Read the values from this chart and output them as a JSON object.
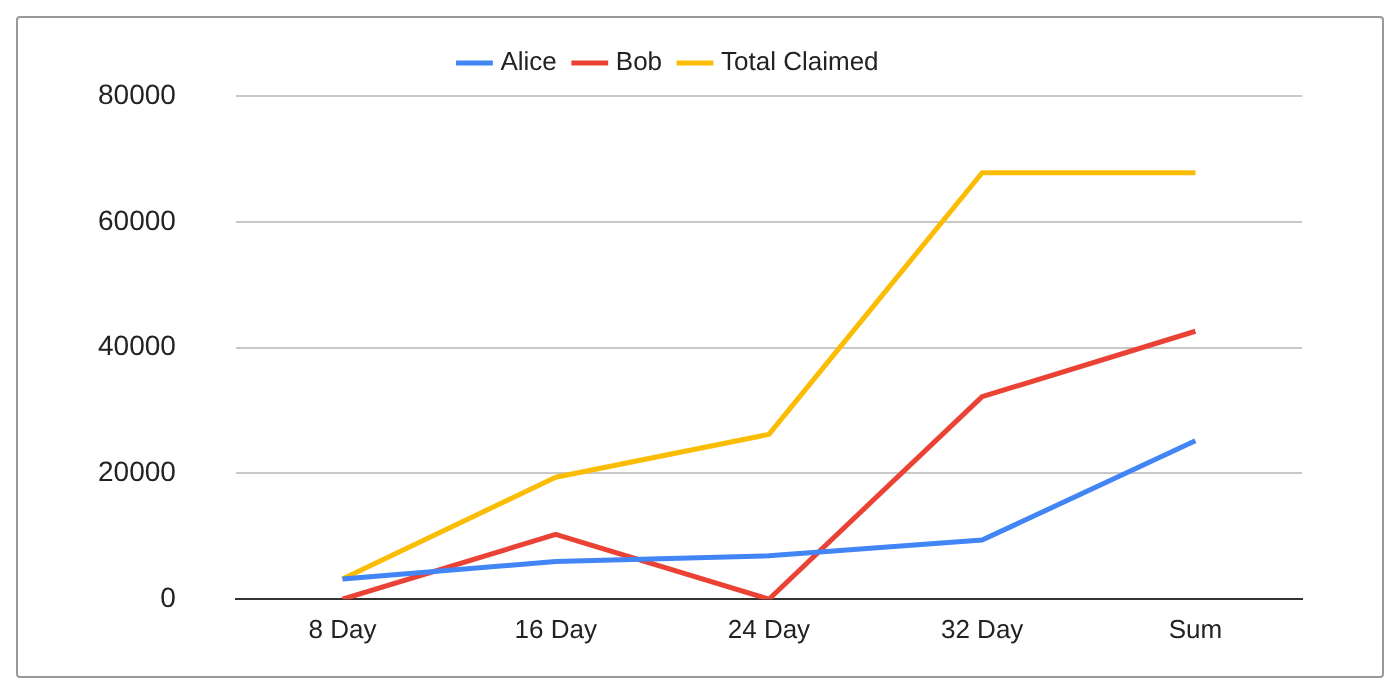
{
  "chart_data": {
    "type": "line",
    "categories": [
      "8 Day",
      "16 Day",
      "24 Day",
      "32 Day",
      "Sum"
    ],
    "series": [
      {
        "name": "Alice",
        "color": "#4285f4",
        "values": [
          3200,
          6000,
          6900,
          9400,
          25200
        ]
      },
      {
        "name": "Bob",
        "color": "#ea4335",
        "values": [
          0,
          10300,
          0,
          32200,
          42600
        ]
      },
      {
        "name": "Total Claimed",
        "color": "#fbbc04",
        "values": [
          3200,
          19400,
          26200,
          67800,
          67800
        ]
      }
    ],
    "ylim": [
      0,
      80000
    ],
    "yticks": [
      0,
      20000,
      40000,
      60000,
      80000
    ],
    "grid": "y",
    "legend": "top",
    "marker": "none",
    "line_style": "solid"
  }
}
